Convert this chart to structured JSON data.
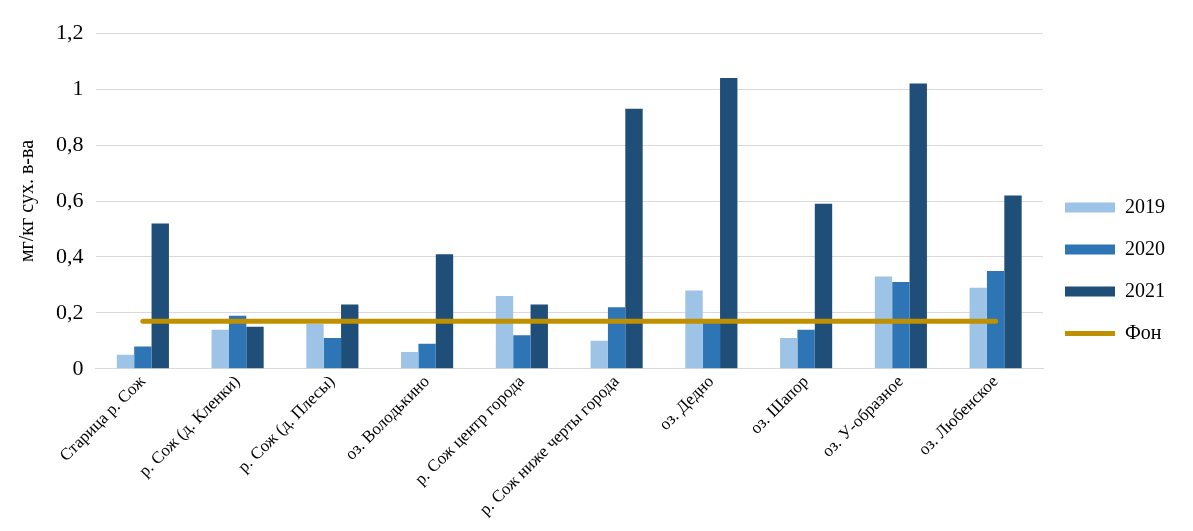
{
  "chart_data": {
    "type": "bar",
    "ylabel": "мг/кг сух. в-ва",
    "categories": [
      "Старица р. Сож",
      "р. Сож (д. Кленки)",
      "р. Сож (д. Плесы)",
      "оз. Володькино",
      "р. Сож центр города",
      "р. Сож ниже черты города",
      "оз. Дедно",
      "оз. Шапор",
      "оз. У-образное",
      "оз. Любенское"
    ],
    "series": [
      {
        "name": "2019",
        "color": "#9dc3e6",
        "values": [
          0.05,
          0.14,
          0.16,
          0.06,
          0.26,
          0.1,
          0.28,
          0.11,
          0.33,
          0.29
        ]
      },
      {
        "name": "2020",
        "color": "#2e75b6",
        "values": [
          0.08,
          0.19,
          0.11,
          0.09,
          0.12,
          0.22,
          0.17,
          0.14,
          0.31,
          0.35
        ]
      },
      {
        "name": "2021",
        "color": "#1f4e79",
        "values": [
          0.52,
          0.15,
          0.23,
          0.41,
          0.23,
          0.93,
          1.04,
          0.59,
          1.02,
          0.62
        ]
      },
      {
        "name": "Фон",
        "type": "line",
        "color": "#bf9000",
        "marker": "none",
        "values": [
          0.17,
          0.17,
          0.17,
          0.17,
          0.17,
          0.17,
          0.17,
          0.17,
          0.17,
          0.17
        ]
      }
    ],
    "ylim": [
      0,
      1.2
    ],
    "yticks": [
      {
        "value": 0,
        "label": "0"
      },
      {
        "value": 0.2,
        "label": "0,2"
      },
      {
        "value": 0.4,
        "label": "0,4"
      },
      {
        "value": 0.6,
        "label": "0,6"
      },
      {
        "value": 0.8,
        "label": "0,8"
      },
      {
        "value": 1,
        "label": "1"
      },
      {
        "value": 1.2,
        "label": "1,2"
      }
    ],
    "grid": "y",
    "legend": "right"
  }
}
